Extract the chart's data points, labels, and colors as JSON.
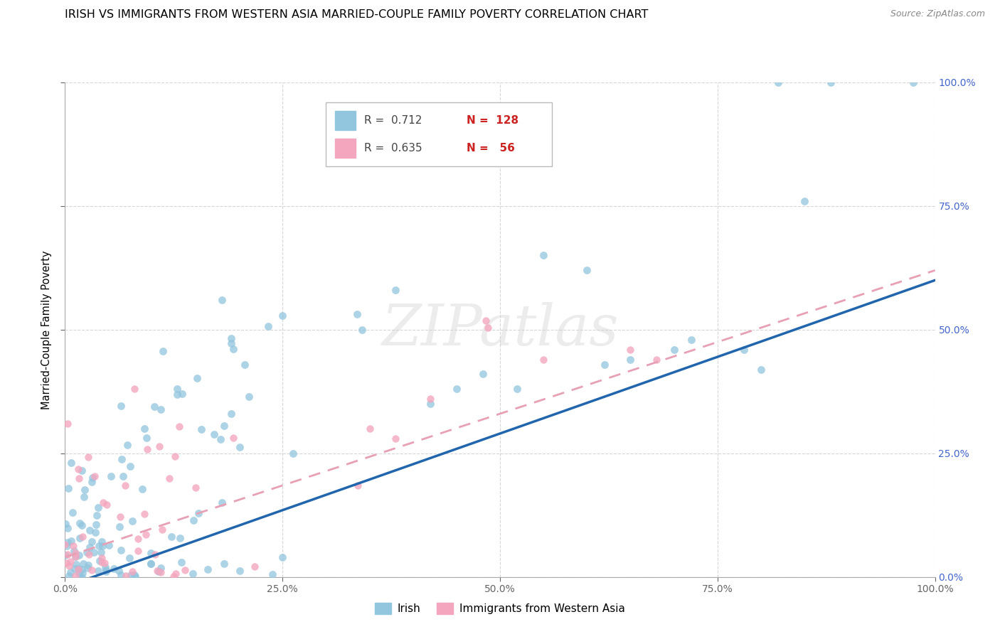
{
  "title": "IRISH VS IMMIGRANTS FROM WESTERN ASIA MARRIED-COUPLE FAMILY POVERTY CORRELATION CHART",
  "source": "Source: ZipAtlas.com",
  "ylabel": "Married-Couple Family Poverty",
  "xlim": [
    0,
    1
  ],
  "ylim": [
    0,
    1
  ],
  "xtick_labels": [
    "0.0%",
    "25.0%",
    "50.0%",
    "75.0%",
    "100.0%"
  ],
  "xtick_vals": [
    0,
    0.25,
    0.5,
    0.75,
    1.0
  ],
  "ytick_vals": [
    0,
    0.25,
    0.5,
    0.75,
    1.0
  ],
  "ytick_labels_right": [
    "0.0%",
    "25.0%",
    "50.0%",
    "75.0%",
    "100.0%"
  ],
  "watermark": "ZIPatlas",
  "irish_color": "#92c5de",
  "western_asia_color": "#f4a6be",
  "irish_line_color": "#2166ac",
  "western_asia_line_color": "#e8a0b4",
  "irish_R": 0.712,
  "irish_N": 128,
  "western_asia_R": 0.635,
  "western_asia_N": 56,
  "background_color": "#ffffff",
  "grid_color": "#cccccc",
  "title_fontsize": 11.5,
  "axis_fontsize": 10,
  "right_axis_color": "#4466cc",
  "legend_R_color": "#444444",
  "legend_N_color": "#cc2222",
  "legend_box_edge": "#bbbbbb"
}
